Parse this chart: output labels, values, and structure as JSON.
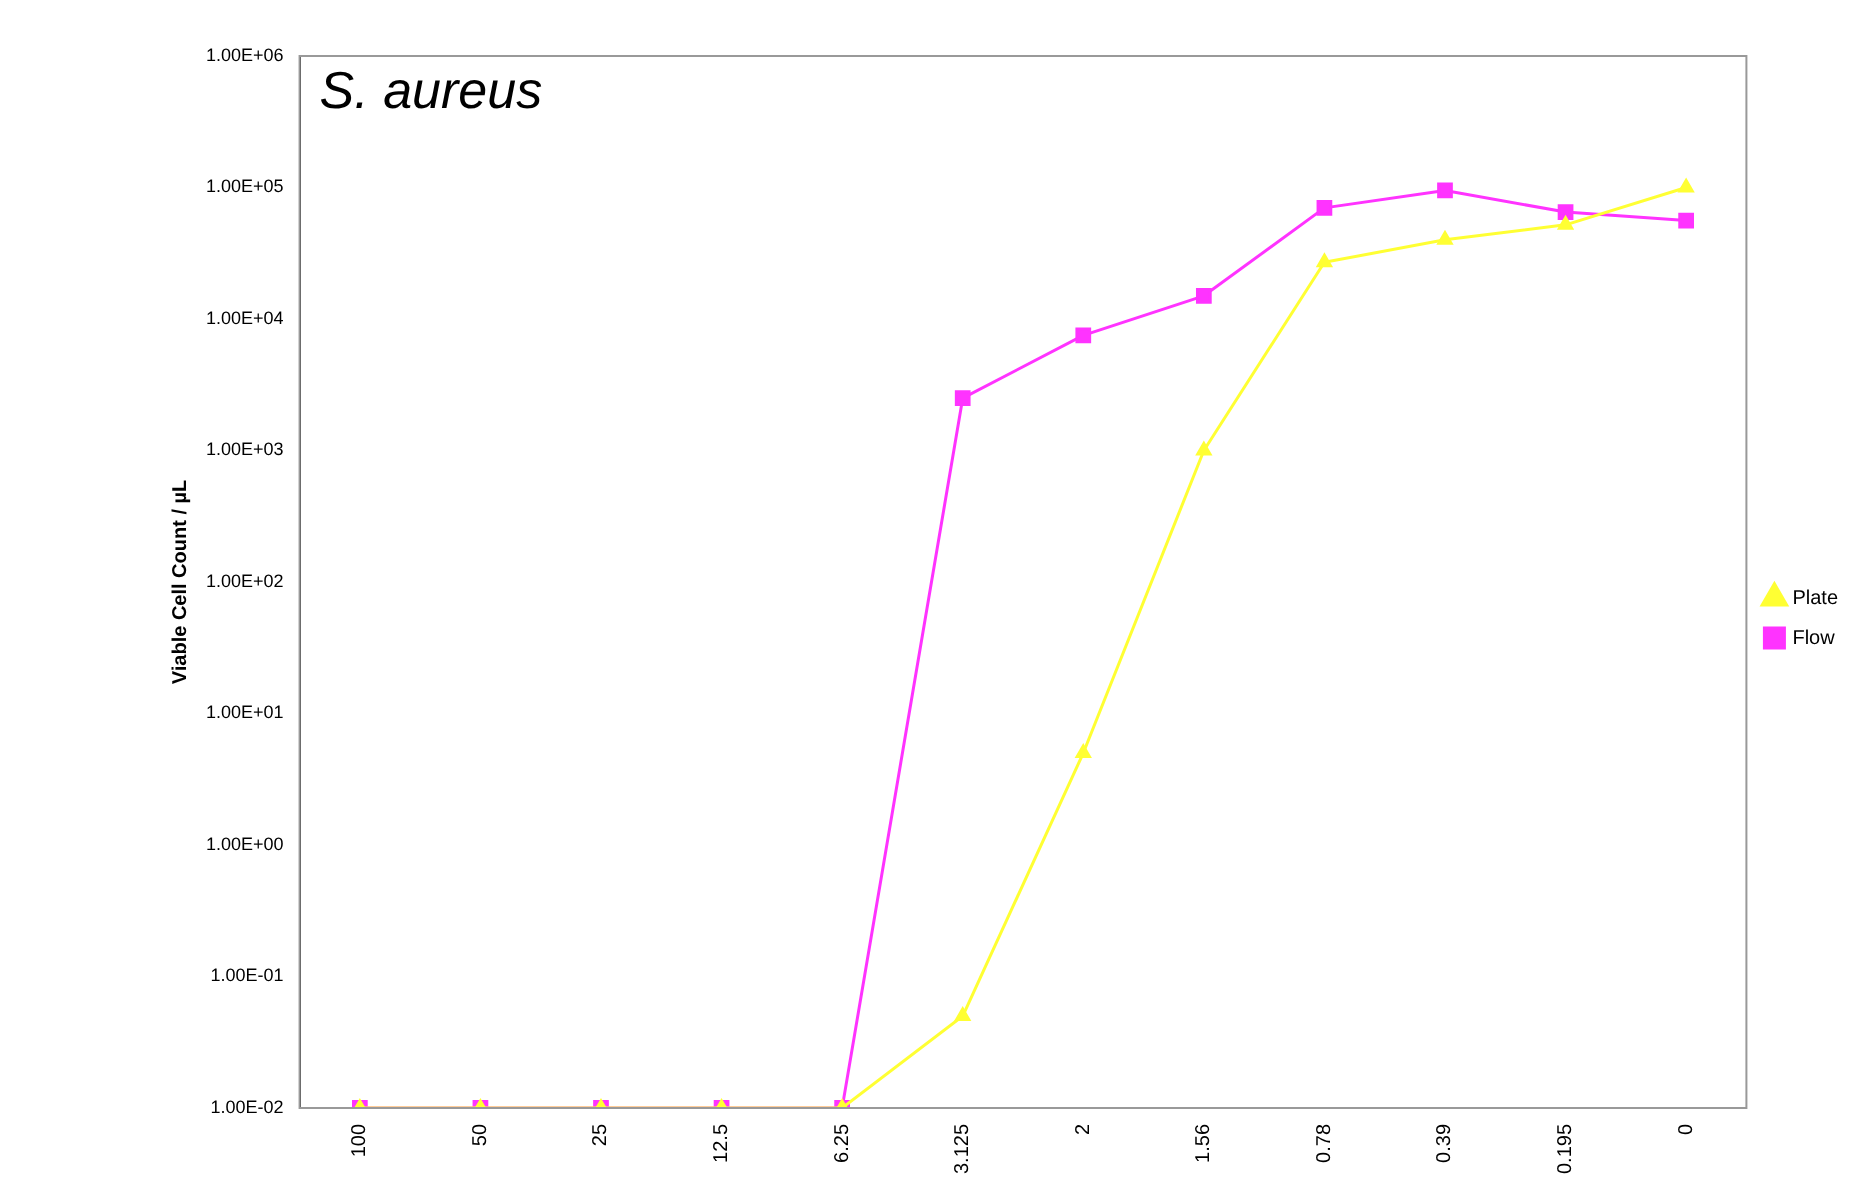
{
  "chart_data": {
    "type": "line",
    "title": "S. aureus",
    "ylabel": "Viable Cell Count / µL",
    "categories": [
      "100",
      "50",
      "25",
      "12.5",
      "6.25",
      "3.125",
      "2",
      "1.56",
      "0.78",
      "0.39",
      "0.195",
      "0"
    ],
    "series": [
      {
        "name": "Flow",
        "color": "#ff33ff",
        "marker": "square",
        "values": [
          0.01,
          0.01,
          0.01,
          0.01,
          0.01,
          2500,
          7500,
          15000,
          70000,
          95000,
          65000,
          56000
        ]
      },
      {
        "name": "Plate",
        "color": "#ffff33",
        "marker": "triangle",
        "values": [
          0.01,
          0.01,
          0.01,
          0.01,
          0.01,
          0.05,
          5,
          1000,
          27000,
          40000,
          52000,
          100000
        ]
      }
    ],
    "log": "y",
    "ylim": [
      0.01,
      1000000
    ],
    "yticks": [
      {
        "value": 0.01,
        "label": "1.00E-02"
      },
      {
        "value": 0.1,
        "label": "1.00E-01"
      },
      {
        "value": 1,
        "label": "1.00E+00"
      },
      {
        "value": 10,
        "label": "1.00E+01"
      },
      {
        "value": 100,
        "label": "1.00E+02"
      },
      {
        "value": 1000,
        "label": "1.00E+03"
      },
      {
        "value": 10000,
        "label": "1.00E+04"
      },
      {
        "value": 100000,
        "label": "1.00E+05"
      },
      {
        "value": 1000000,
        "label": "1.00E+06"
      }
    ],
    "grid": false,
    "legend": "right"
  }
}
